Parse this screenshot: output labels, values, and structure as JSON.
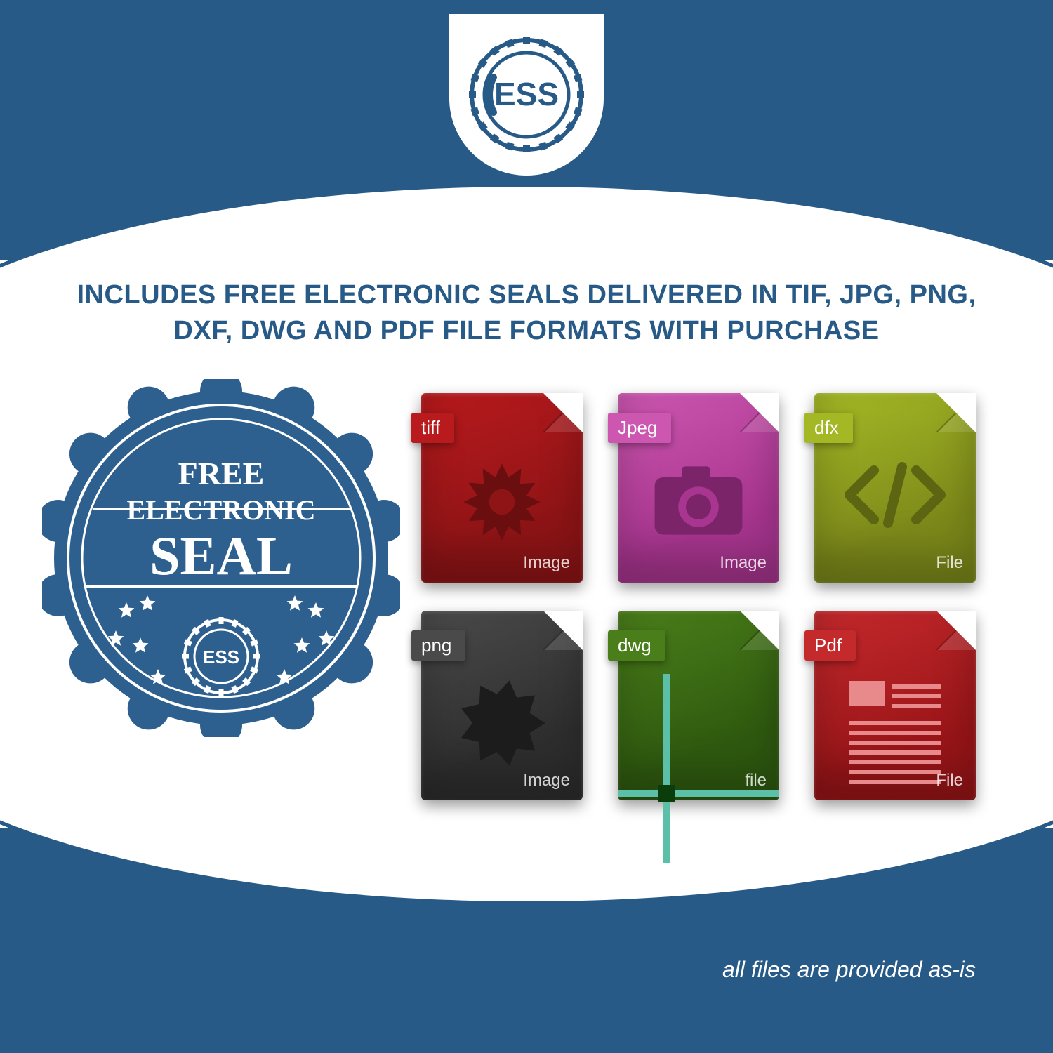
{
  "colors": {
    "brand_blue": "#285a88",
    "white": "#ffffff"
  },
  "logo": {
    "text": "ESS",
    "gear_color": "#285a88",
    "text_color": "#285a88"
  },
  "headline": "INCLUDES FREE ELECTRONIC SEALS DELIVERED IN TIF, JPG, PNG, DXF, DWG AND PDF FILE FORMATS WITH PURCHASE",
  "seal": {
    "line1": "FREE",
    "line2": "ELECTRONIC",
    "line3": "SEAL",
    "badge_color": "#2d5f8f",
    "text_color": "#ffffff",
    "inner_logo": "ESS",
    "star_count": 10
  },
  "files": [
    {
      "label": "tiff",
      "footer": "Image",
      "body_color": "#8f1416",
      "body_color2": "#b81a1d",
      "tab_color": "#b81a1d",
      "glyph": "gear",
      "glyph_color": "#6a0e10"
    },
    {
      "label": "Jpeg",
      "footer": "Image",
      "body_color": "#a8358f",
      "body_color2": "#cc56b0",
      "tab_color": "#cc56b0",
      "glyph": "camera",
      "glyph_color": "#7c2469"
    },
    {
      "label": "dfx",
      "footer": "File",
      "body_color": "#7d8a1a",
      "body_color2": "#a4b825",
      "tab_color": "#a4b825",
      "glyph": "code",
      "glyph_color": "#5c6612"
    },
    {
      "label": "png",
      "footer": "Image",
      "body_color": "#2e2e2e",
      "body_color2": "#4a4a4a",
      "tab_color": "#4a4a4a",
      "glyph": "burst",
      "glyph_color": "#1c1c1c"
    },
    {
      "label": "dwg",
      "footer": "file",
      "body_color": "#2f5a0f",
      "body_color2": "#4a7e1a",
      "tab_color": "#4a7e1a",
      "glyph": "crosshair",
      "glyph_color": "#5cbfa8"
    },
    {
      "label": "Pdf",
      "footer": "File",
      "body_color": "#9a1518",
      "body_color2": "#c4292c",
      "tab_color": "#c4292c",
      "glyph": "doc",
      "glyph_color": "#e88a8c"
    }
  ],
  "disclaimer": "all files are provided as-is"
}
